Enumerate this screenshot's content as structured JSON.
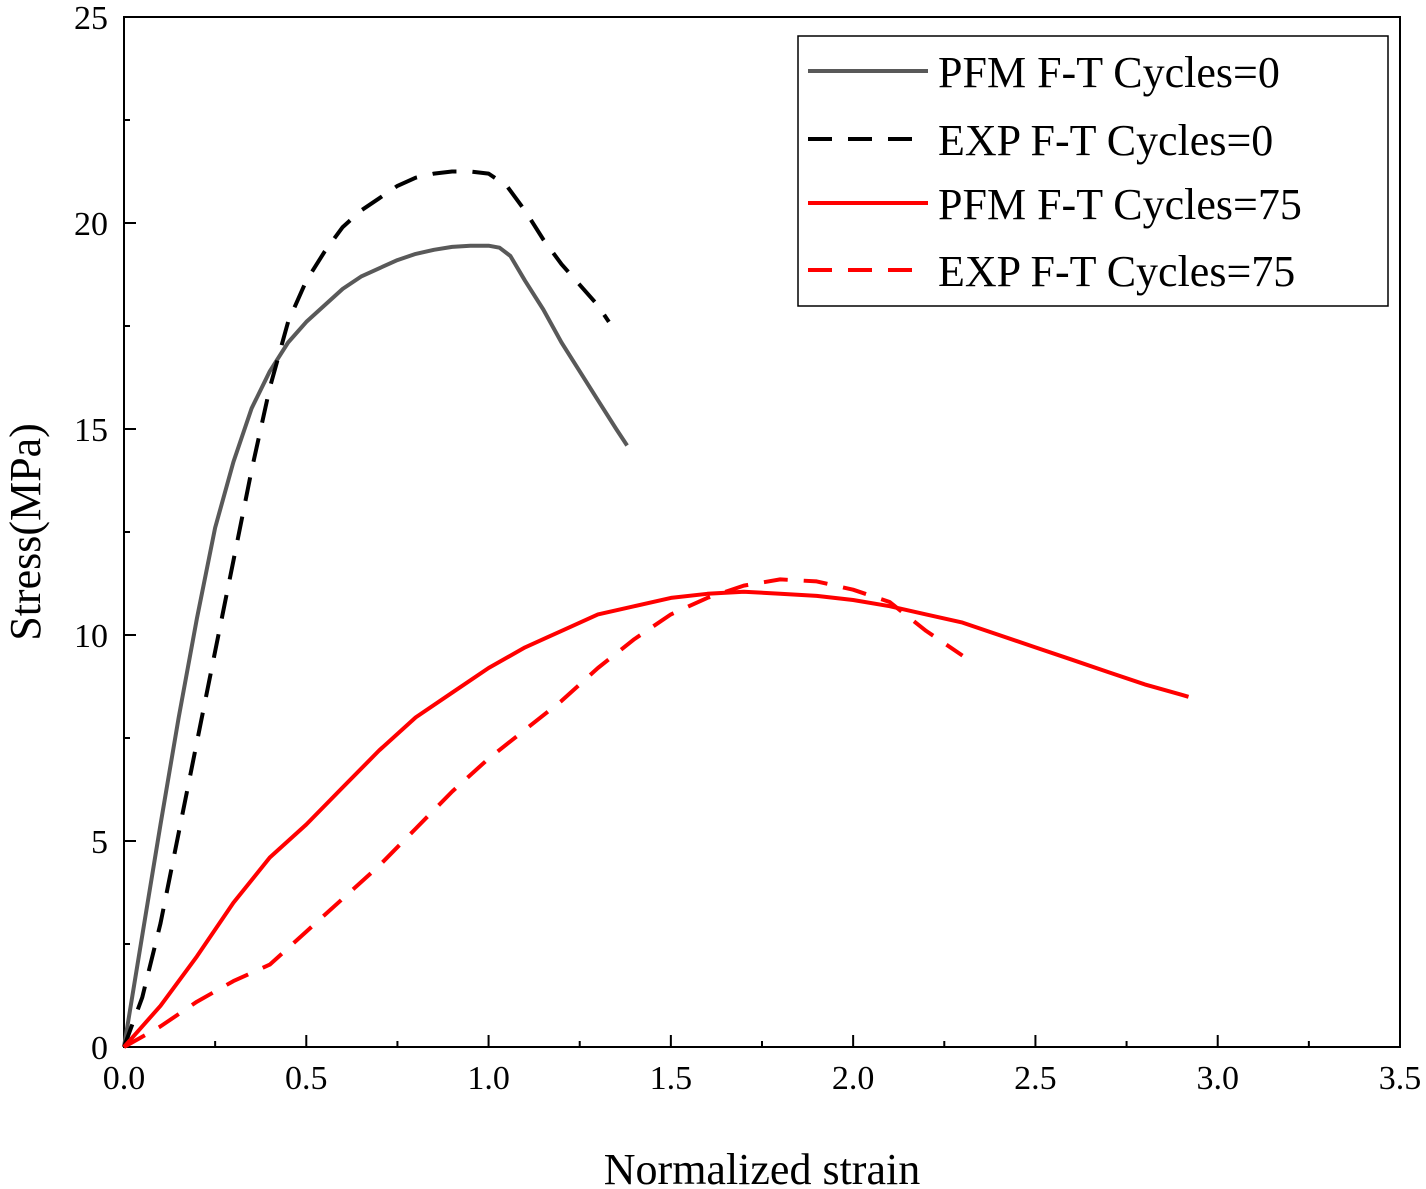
{
  "chart_data": {
    "type": "line",
    "title": "",
    "xlabel": "Normalized strain",
    "ylabel": "Stress(MPa)",
    "xlim": [
      0,
      3.5
    ],
    "ylim": [
      0,
      25
    ],
    "xticks": [
      0,
      0.5,
      1,
      1.5,
      2,
      2.5,
      3,
      3.5
    ],
    "xtick_labels": [
      "0.0",
      "0.5",
      "1.0",
      "1.5",
      "2.0",
      "2.5",
      "3.0",
      "3.5"
    ],
    "yticks": [
      0,
      5,
      10,
      15,
      20,
      25
    ],
    "ytick_labels": [
      "0",
      "5",
      "10",
      "15",
      "20",
      "25"
    ],
    "grid": false,
    "legend_position": "top-right",
    "series": [
      {
        "name": "PFM F-T Cycles=0",
        "color": "#595959",
        "dash": "solid",
        "x": [
          0,
          0.05,
          0.1,
          0.15,
          0.2,
          0.25,
          0.3,
          0.35,
          0.4,
          0.45,
          0.5,
          0.55,
          0.6,
          0.65,
          0.7,
          0.75,
          0.8,
          0.85,
          0.9,
          0.95,
          1.0,
          1.03,
          1.06,
          1.1,
          1.15,
          1.2,
          1.25,
          1.3,
          1.35,
          1.38
        ],
        "y": [
          0,
          2.7,
          5.4,
          8.0,
          10.4,
          12.6,
          14.2,
          15.5,
          16.4,
          17.1,
          17.6,
          18.0,
          18.4,
          18.7,
          18.9,
          19.1,
          19.25,
          19.35,
          19.42,
          19.45,
          19.45,
          19.4,
          19.2,
          18.6,
          17.9,
          17.1,
          16.4,
          15.7,
          15.0,
          14.6
        ]
      },
      {
        "name": "EXP F-T Cycles=0",
        "color": "#000000",
        "dash": "dashed",
        "x": [
          0,
          0.05,
          0.1,
          0.15,
          0.2,
          0.25,
          0.3,
          0.35,
          0.4,
          0.45,
          0.5,
          0.55,
          0.6,
          0.65,
          0.7,
          0.75,
          0.8,
          0.85,
          0.9,
          0.95,
          1.0,
          1.05,
          1.1,
          1.15,
          1.2,
          1.25,
          1.3,
          1.33
        ],
        "y": [
          0,
          1.2,
          3.0,
          5.2,
          7.4,
          9.6,
          11.8,
          14.0,
          16.0,
          17.6,
          18.6,
          19.3,
          19.9,
          20.3,
          20.6,
          20.9,
          21.1,
          21.2,
          21.25,
          21.25,
          21.2,
          20.9,
          20.3,
          19.6,
          19.0,
          18.5,
          18.0,
          17.6
        ]
      },
      {
        "name": "PFM F-T Cycles=75",
        "color": "#ff0000",
        "dash": "solid",
        "x": [
          0,
          0.1,
          0.2,
          0.3,
          0.4,
          0.5,
          0.6,
          0.7,
          0.8,
          0.9,
          1.0,
          1.1,
          1.2,
          1.3,
          1.4,
          1.5,
          1.6,
          1.7,
          1.8,
          1.9,
          2.0,
          2.1,
          2.2,
          2.3,
          2.4,
          2.5,
          2.6,
          2.7,
          2.8,
          2.9,
          2.92
        ],
        "y": [
          0,
          1.0,
          2.2,
          3.5,
          4.6,
          5.4,
          6.3,
          7.2,
          8.0,
          8.6,
          9.2,
          9.7,
          10.1,
          10.5,
          10.7,
          10.9,
          11.0,
          11.05,
          11.0,
          10.95,
          10.85,
          10.7,
          10.5,
          10.3,
          10.0,
          9.7,
          9.4,
          9.1,
          8.8,
          8.55,
          8.5
        ]
      },
      {
        "name": "EXP F-T Cycles=75",
        "color": "#ff0000",
        "dash": "dashed",
        "x": [
          0,
          0.1,
          0.2,
          0.3,
          0.4,
          0.5,
          0.6,
          0.7,
          0.8,
          0.9,
          1.0,
          1.1,
          1.2,
          1.3,
          1.4,
          1.5,
          1.6,
          1.7,
          1.8,
          1.9,
          2.0,
          2.1,
          2.2,
          2.3
        ],
        "y": [
          0,
          0.5,
          1.1,
          1.6,
          2.0,
          2.8,
          3.6,
          4.4,
          5.3,
          6.2,
          7.0,
          7.7,
          8.4,
          9.2,
          9.9,
          10.5,
          10.9,
          11.2,
          11.35,
          11.3,
          11.1,
          10.8,
          10.1,
          9.5
        ]
      }
    ]
  }
}
